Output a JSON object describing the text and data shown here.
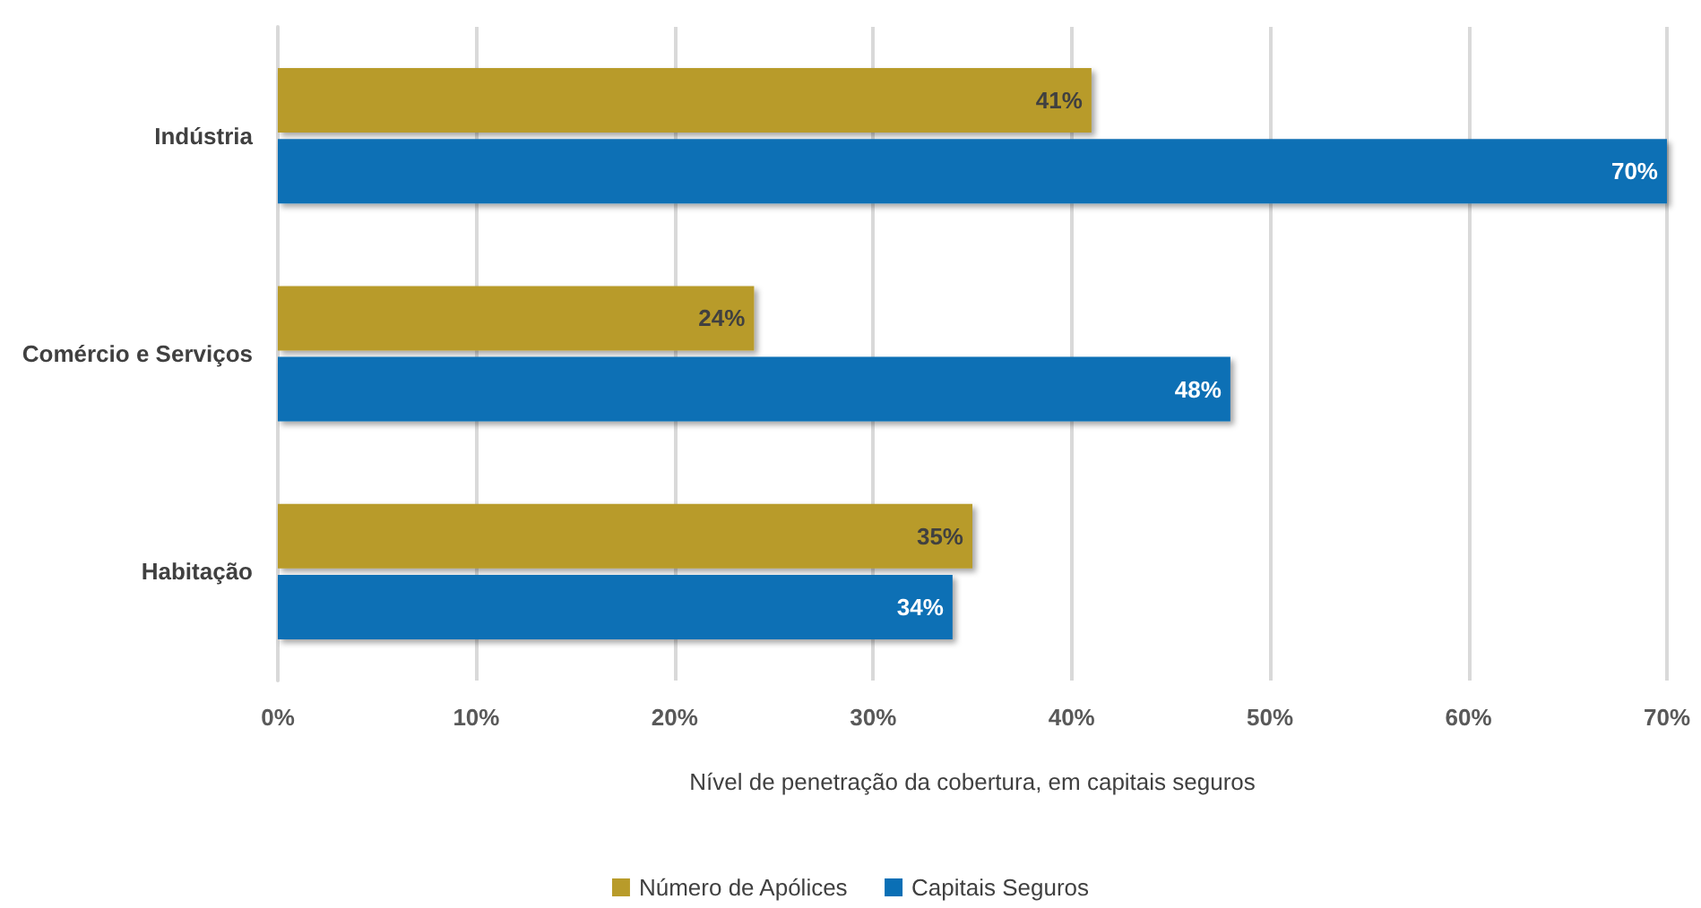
{
  "chart_data": {
    "type": "bar",
    "orientation": "horizontal",
    "xlabel": "Nível de penetração da cobertura, em capitais seguros",
    "categories": [
      "Indústria",
      "Comércio e Serviços",
      "Habitação"
    ],
    "series": [
      {
        "name": "Número de Apólices",
        "color": "#b89b2a",
        "values": [
          41,
          24,
          35
        ],
        "value_labels": [
          "41%",
          "24%",
          "35%"
        ]
      },
      {
        "name": "Capitais Seguros",
        "color": "#0a6fb5",
        "values": [
          70,
          48,
          34
        ],
        "value_labels": [
          "70%",
          "48%",
          "34%"
        ]
      }
    ],
    "xlim": [
      0,
      70
    ],
    "xticks": [
      {
        "value": 0,
        "label": "0%"
      },
      {
        "value": 10,
        "label": "10%"
      },
      {
        "value": 20,
        "label": "20%"
      },
      {
        "value": 30,
        "label": "30%"
      },
      {
        "value": 40,
        "label": "40%"
      },
      {
        "value": 50,
        "label": "50%"
      },
      {
        "value": 60,
        "label": "60%"
      },
      {
        "value": 70,
        "label": "70%"
      }
    ],
    "grid": "x",
    "legend": "bottom"
  }
}
